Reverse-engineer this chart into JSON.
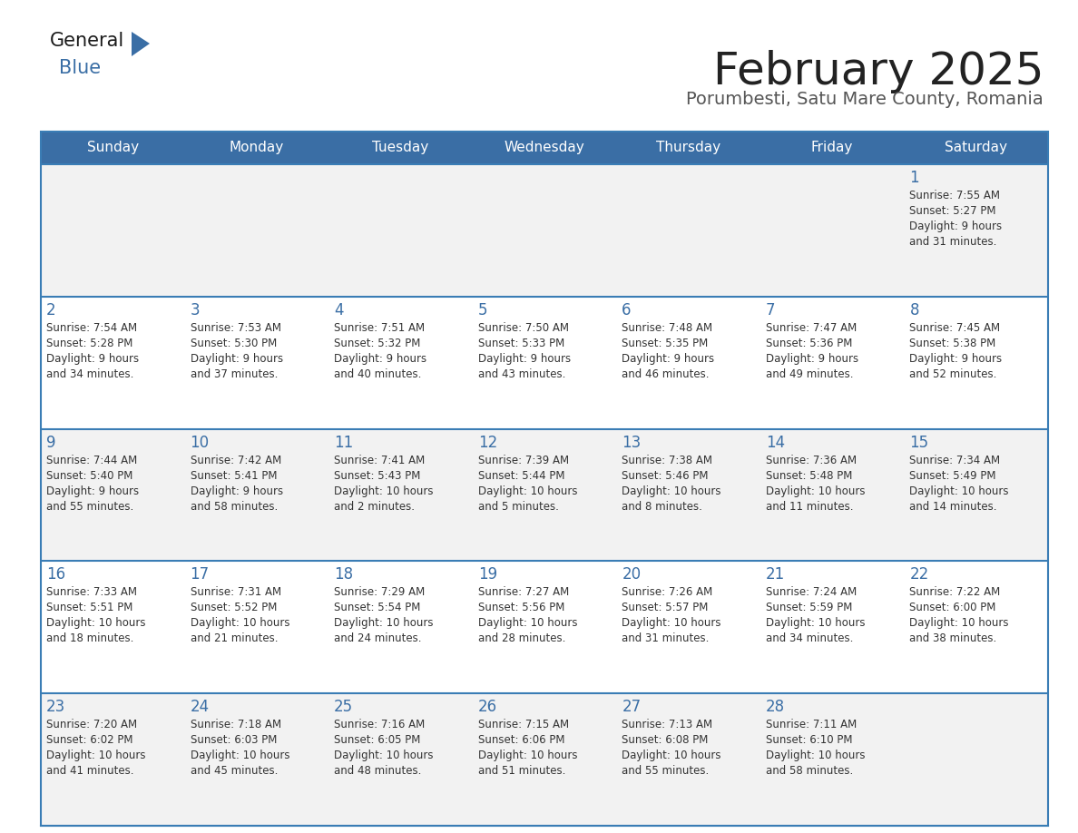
{
  "title": "February 2025",
  "subtitle": "Porumbesti, Satu Mare County, Romania",
  "header_color": "#3a6ea5",
  "header_text_color": "#ffffff",
  "background_color": "#ffffff",
  "cell_bg_color": "#f2f2f2",
  "separator_color": "#3a7db5",
  "day_names": [
    "Sunday",
    "Monday",
    "Tuesday",
    "Wednesday",
    "Thursday",
    "Friday",
    "Saturday"
  ],
  "title_color": "#222222",
  "subtitle_color": "#555555",
  "day_number_color": "#3a6ea5",
  "info_color": "#333333",
  "weeks": [
    [
      {
        "day": null,
        "sunrise": null,
        "sunset": null,
        "daylight_line1": null,
        "daylight_line2": null
      },
      {
        "day": null,
        "sunrise": null,
        "sunset": null,
        "daylight_line1": null,
        "daylight_line2": null
      },
      {
        "day": null,
        "sunrise": null,
        "sunset": null,
        "daylight_line1": null,
        "daylight_line2": null
      },
      {
        "day": null,
        "sunrise": null,
        "sunset": null,
        "daylight_line1": null,
        "daylight_line2": null
      },
      {
        "day": null,
        "sunrise": null,
        "sunset": null,
        "daylight_line1": null,
        "daylight_line2": null
      },
      {
        "day": null,
        "sunrise": null,
        "sunset": null,
        "daylight_line1": null,
        "daylight_line2": null
      },
      {
        "day": 1,
        "sunrise": "7:55 AM",
        "sunset": "5:27 PM",
        "daylight_line1": "Daylight: 9 hours",
        "daylight_line2": "and 31 minutes."
      }
    ],
    [
      {
        "day": 2,
        "sunrise": "7:54 AM",
        "sunset": "5:28 PM",
        "daylight_line1": "Daylight: 9 hours",
        "daylight_line2": "and 34 minutes."
      },
      {
        "day": 3,
        "sunrise": "7:53 AM",
        "sunset": "5:30 PM",
        "daylight_line1": "Daylight: 9 hours",
        "daylight_line2": "and 37 minutes."
      },
      {
        "day": 4,
        "sunrise": "7:51 AM",
        "sunset": "5:32 PM",
        "daylight_line1": "Daylight: 9 hours",
        "daylight_line2": "and 40 minutes."
      },
      {
        "day": 5,
        "sunrise": "7:50 AM",
        "sunset": "5:33 PM",
        "daylight_line1": "Daylight: 9 hours",
        "daylight_line2": "and 43 minutes."
      },
      {
        "day": 6,
        "sunrise": "7:48 AM",
        "sunset": "5:35 PM",
        "daylight_line1": "Daylight: 9 hours",
        "daylight_line2": "and 46 minutes."
      },
      {
        "day": 7,
        "sunrise": "7:47 AM",
        "sunset": "5:36 PM",
        "daylight_line1": "Daylight: 9 hours",
        "daylight_line2": "and 49 minutes."
      },
      {
        "day": 8,
        "sunrise": "7:45 AM",
        "sunset": "5:38 PM",
        "daylight_line1": "Daylight: 9 hours",
        "daylight_line2": "and 52 minutes."
      }
    ],
    [
      {
        "day": 9,
        "sunrise": "7:44 AM",
        "sunset": "5:40 PM",
        "daylight_line1": "Daylight: 9 hours",
        "daylight_line2": "and 55 minutes."
      },
      {
        "day": 10,
        "sunrise": "7:42 AM",
        "sunset": "5:41 PM",
        "daylight_line1": "Daylight: 9 hours",
        "daylight_line2": "and 58 minutes."
      },
      {
        "day": 11,
        "sunrise": "7:41 AM",
        "sunset": "5:43 PM",
        "daylight_line1": "Daylight: 10 hours",
        "daylight_line2": "and 2 minutes."
      },
      {
        "day": 12,
        "sunrise": "7:39 AM",
        "sunset": "5:44 PM",
        "daylight_line1": "Daylight: 10 hours",
        "daylight_line2": "and 5 minutes."
      },
      {
        "day": 13,
        "sunrise": "7:38 AM",
        "sunset": "5:46 PM",
        "daylight_line1": "Daylight: 10 hours",
        "daylight_line2": "and 8 minutes."
      },
      {
        "day": 14,
        "sunrise": "7:36 AM",
        "sunset": "5:48 PM",
        "daylight_line1": "Daylight: 10 hours",
        "daylight_line2": "and 11 minutes."
      },
      {
        "day": 15,
        "sunrise": "7:34 AM",
        "sunset": "5:49 PM",
        "daylight_line1": "Daylight: 10 hours",
        "daylight_line2": "and 14 minutes."
      }
    ],
    [
      {
        "day": 16,
        "sunrise": "7:33 AM",
        "sunset": "5:51 PM",
        "daylight_line1": "Daylight: 10 hours",
        "daylight_line2": "and 18 minutes."
      },
      {
        "day": 17,
        "sunrise": "7:31 AM",
        "sunset": "5:52 PM",
        "daylight_line1": "Daylight: 10 hours",
        "daylight_line2": "and 21 minutes."
      },
      {
        "day": 18,
        "sunrise": "7:29 AM",
        "sunset": "5:54 PM",
        "daylight_line1": "Daylight: 10 hours",
        "daylight_line2": "and 24 minutes."
      },
      {
        "day": 19,
        "sunrise": "7:27 AM",
        "sunset": "5:56 PM",
        "daylight_line1": "Daylight: 10 hours",
        "daylight_line2": "and 28 minutes."
      },
      {
        "day": 20,
        "sunrise": "7:26 AM",
        "sunset": "5:57 PM",
        "daylight_line1": "Daylight: 10 hours",
        "daylight_line2": "and 31 minutes."
      },
      {
        "day": 21,
        "sunrise": "7:24 AM",
        "sunset": "5:59 PM",
        "daylight_line1": "Daylight: 10 hours",
        "daylight_line2": "and 34 minutes."
      },
      {
        "day": 22,
        "sunrise": "7:22 AM",
        "sunset": "6:00 PM",
        "daylight_line1": "Daylight: 10 hours",
        "daylight_line2": "and 38 minutes."
      }
    ],
    [
      {
        "day": 23,
        "sunrise": "7:20 AM",
        "sunset": "6:02 PM",
        "daylight_line1": "Daylight: 10 hours",
        "daylight_line2": "and 41 minutes."
      },
      {
        "day": 24,
        "sunrise": "7:18 AM",
        "sunset": "6:03 PM",
        "daylight_line1": "Daylight: 10 hours",
        "daylight_line2": "and 45 minutes."
      },
      {
        "day": 25,
        "sunrise": "7:16 AM",
        "sunset": "6:05 PM",
        "daylight_line1": "Daylight: 10 hours",
        "daylight_line2": "and 48 minutes."
      },
      {
        "day": 26,
        "sunrise": "7:15 AM",
        "sunset": "6:06 PM",
        "daylight_line1": "Daylight: 10 hours",
        "daylight_line2": "and 51 minutes."
      },
      {
        "day": 27,
        "sunrise": "7:13 AM",
        "sunset": "6:08 PM",
        "daylight_line1": "Daylight: 10 hours",
        "daylight_line2": "and 55 minutes."
      },
      {
        "day": 28,
        "sunrise": "7:11 AM",
        "sunset": "6:10 PM",
        "daylight_line1": "Daylight: 10 hours",
        "daylight_line2": "and 58 minutes."
      },
      {
        "day": null,
        "sunrise": null,
        "sunset": null,
        "daylight_line1": null,
        "daylight_line2": null
      }
    ]
  ]
}
